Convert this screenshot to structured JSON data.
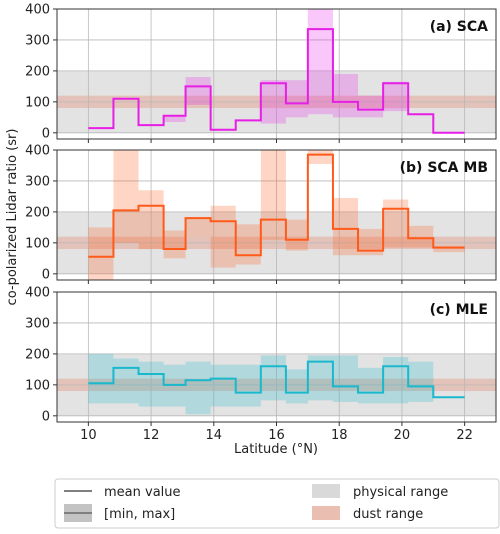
{
  "chart_data": {
    "type": "line",
    "xlabel": "Latitude (°N)",
    "ylabel": "co-polarized Lidar ratio (sr)",
    "xlim": [
      9,
      23
    ],
    "ylim": [
      -20,
      400
    ],
    "x_ticks": [
      "10",
      "12",
      "14",
      "16",
      "18",
      "20",
      "22"
    ],
    "y_ticks": [
      "0",
      "100",
      "200",
      "300",
      "400"
    ],
    "grid": true,
    "bands": {
      "physical_range": [
        0,
        200
      ],
      "dust_range": [
        80,
        120
      ]
    },
    "legend": {
      "placement": "bottom",
      "entries": [
        "mean value",
        "[min, max]",
        "physical range",
        "dust range"
      ],
      "colors": {
        "mean": "#7f7f7f",
        "minmax": "#bdbdbd",
        "physical": "#d9d9d9",
        "dust": "#e8b8aa"
      }
    },
    "bin_edges": [
      10,
      10.8,
      11.6,
      12.4,
      13.1,
      13.9,
      14.7,
      15.5,
      16.3,
      17.0,
      17.8,
      18.6,
      19.4,
      20.2,
      21.0,
      22.0
    ],
    "panels": [
      {
        "title": "(a) SCA",
        "color": "#e61ee6",
        "mean": [
          15,
          110,
          25,
          55,
          150,
          10,
          40,
          160,
          95,
          335,
          100,
          75,
          160,
          60,
          0
        ],
        "min": [
          15,
          110,
          25,
          35,
          90,
          10,
          40,
          30,
          50,
          60,
          50,
          50,
          70,
          60,
          0
        ],
        "max": [
          15,
          110,
          25,
          55,
          180,
          10,
          40,
          170,
          170,
          400,
          190,
          120,
          165,
          60,
          0
        ]
      },
      {
        "title": "(b) SCA MB",
        "color": "#ff5a1a",
        "mean": [
          55,
          205,
          220,
          80,
          180,
          170,
          60,
          175,
          110,
          385,
          145,
          75,
          210,
          115,
          85
        ],
        "min": [
          -20,
          100,
          80,
          50,
          120,
          20,
          30,
          110,
          75,
          355,
          60,
          60,
          85,
          85,
          70
        ],
        "max": [
          150,
          400,
          270,
          140,
          180,
          220,
          160,
          400,
          175,
          400,
          245,
          145,
          240,
          155,
          85
        ]
      },
      {
        "title": "(c) MLE",
        "color": "#1ab8cc",
        "mean": [
          105,
          155,
          135,
          100,
          115,
          120,
          75,
          160,
          75,
          175,
          95,
          75,
          160,
          95,
          60
        ],
        "min": [
          40,
          40,
          30,
          30,
          5,
          30,
          30,
          50,
          40,
          50,
          45,
          40,
          40,
          45,
          60
        ],
        "max": [
          200,
          185,
          175,
          165,
          175,
          165,
          165,
          195,
          150,
          195,
          195,
          155,
          190,
          175,
          60
        ]
      }
    ]
  }
}
